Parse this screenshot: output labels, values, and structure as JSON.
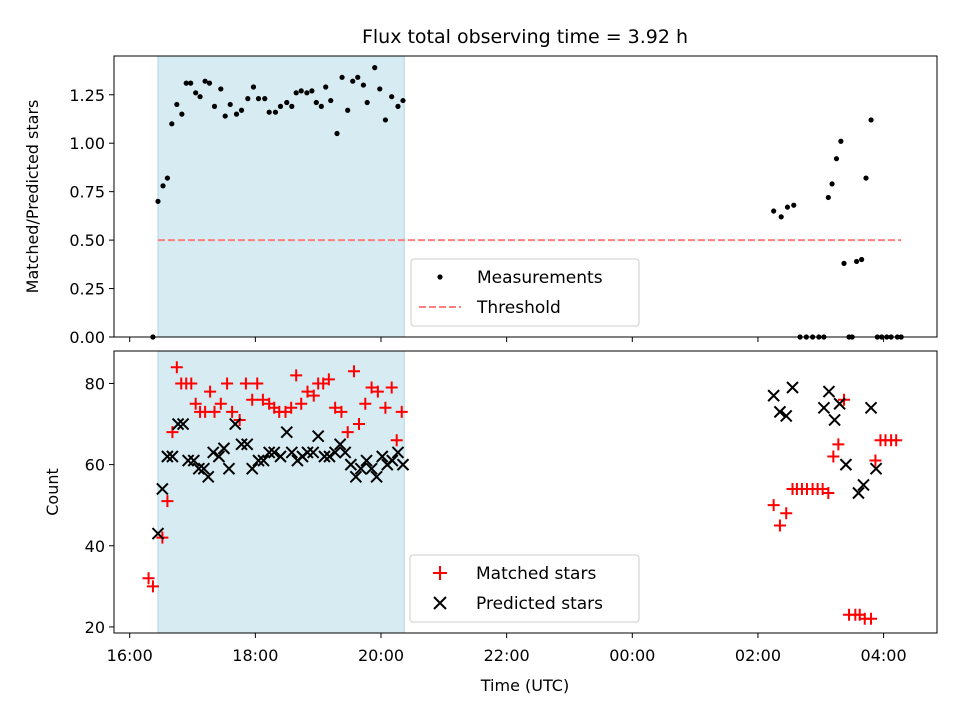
{
  "chart_data": {
    "title": "Flux total observing time = 3.92 h",
    "xlabel": "Time (UTC)",
    "x_unit": "hours since 00:00 of first night (values > 24 are next day)",
    "xlim": [
      15.75,
      28.85
    ],
    "x_ticks": [
      {
        "value": 16,
        "label": "16:00"
      },
      {
        "value": 18,
        "label": "18:00"
      },
      {
        "value": 20,
        "label": "20:00"
      },
      {
        "value": 22,
        "label": "22:00"
      },
      {
        "value": 24,
        "label": "00:00"
      },
      {
        "value": 26,
        "label": "02:00"
      },
      {
        "value": 28,
        "label": "04:00"
      }
    ],
    "shaded_interval": {
      "start": 16.45,
      "end": 20.37,
      "color": "#add8e6"
    },
    "colors": {
      "measurements": "#000000",
      "threshold": "#ff7f7f",
      "matched": "#ff0000",
      "predicted": "#000000",
      "shade": "#add8e6"
    },
    "panels": [
      {
        "type": "scatter",
        "ylabel": "Matched/Predicted stars",
        "ylim": [
          0,
          1.45
        ],
        "y_ticks": [
          {
            "value": 0,
            "label": "0.00"
          },
          {
            "value": 0.25,
            "label": "0.25"
          },
          {
            "value": 0.5,
            "label": "0.50"
          },
          {
            "value": 0.75,
            "label": "0.75"
          },
          {
            "value": 1.0,
            "label": "1.00"
          },
          {
            "value": 1.25,
            "label": "1.25"
          }
        ],
        "legend": {
          "position": "lower center",
          "entries": [
            "Measurements",
            "Threshold"
          ]
        },
        "threshold": {
          "label": "Threshold",
          "value": 0.5,
          "x_range": [
            16.45,
            28.28
          ],
          "style": "dashed"
        },
        "series": [
          {
            "name": "Measurements",
            "marker": "dot",
            "x": [
              16.37,
              16.45,
              16.53,
              16.6,
              16.67,
              16.75,
              16.83,
              16.9,
              16.97,
              17.05,
              17.12,
              17.2,
              17.27,
              17.35,
              17.45,
              17.52,
              17.6,
              17.7,
              17.78,
              17.88,
              17.97,
              18.05,
              18.15,
              18.22,
              18.32,
              18.4,
              18.5,
              18.58,
              18.65,
              18.73,
              18.82,
              18.9,
              18.97,
              19.05,
              19.12,
              19.2,
              19.3,
              19.38,
              19.47,
              19.55,
              19.63,
              19.72,
              19.78,
              19.9,
              19.98,
              20.07,
              20.17,
              20.27,
              20.35,
              26.25,
              26.37,
              26.47,
              26.57,
              26.67,
              26.77,
              26.87,
              26.97,
              27.05,
              27.12,
              27.18,
              27.25,
              27.32,
              27.37,
              27.45,
              27.5,
              27.57,
              27.65,
              27.72,
              27.8,
              27.9,
              27.97,
              28.05,
              28.12,
              28.22,
              28.28
            ],
            "y": [
              0.0,
              0.7,
              0.78,
              0.82,
              1.1,
              1.2,
              1.15,
              1.31,
              1.31,
              1.26,
              1.24,
              1.32,
              1.31,
              1.19,
              1.28,
              1.14,
              1.2,
              1.15,
              1.17,
              1.23,
              1.29,
              1.23,
              1.23,
              1.16,
              1.16,
              1.19,
              1.21,
              1.19,
              1.26,
              1.27,
              1.26,
              1.27,
              1.21,
              1.19,
              1.29,
              1.22,
              1.05,
              1.34,
              1.17,
              1.32,
              1.34,
              1.3,
              1.21,
              1.39,
              1.28,
              1.12,
              1.24,
              1.19,
              1.22,
              0.65,
              0.62,
              0.67,
              0.68,
              0.0,
              0.0,
              0.0,
              0.0,
              0.0,
              0.72,
              0.79,
              0.92,
              1.01,
              0.38,
              0.0,
              0.0,
              0.39,
              0.4,
              0.82,
              1.12,
              0.0,
              0.0,
              0.0,
              0.0,
              0.0,
              0.0
            ]
          }
        ]
      },
      {
        "type": "scatter",
        "ylabel": "Count",
        "ylim": [
          18.5,
          88
        ],
        "y_ticks": [
          {
            "value": 20,
            "label": "20"
          },
          {
            "value": 40,
            "label": "40"
          },
          {
            "value": 60,
            "label": "60"
          },
          {
            "value": 80,
            "label": "80"
          }
        ],
        "legend": {
          "position": "lower center",
          "entries": [
            "Matched stars",
            "Predicted stars"
          ]
        },
        "series": [
          {
            "name": "Matched stars",
            "marker": "plus",
            "x": [
              16.3,
              16.37,
              16.52,
              16.6,
              16.68,
              16.75,
              16.82,
              16.9,
              16.98,
              17.05,
              17.12,
              17.2,
              17.28,
              17.35,
              17.45,
              17.55,
              17.63,
              17.75,
              17.85,
              17.95,
              18.03,
              18.12,
              18.22,
              18.3,
              18.38,
              18.48,
              18.57,
              18.65,
              18.73,
              18.83,
              18.93,
              19.0,
              19.08,
              19.17,
              19.27,
              19.37,
              19.47,
              19.57,
              19.65,
              19.75,
              19.85,
              19.95,
              20.07,
              20.17,
              20.25,
              20.33,
              26.25,
              26.35,
              26.45,
              26.55,
              26.62,
              26.7,
              26.78,
              26.87,
              26.95,
              27.03,
              27.12,
              27.2,
              27.28,
              27.37,
              27.45,
              27.55,
              27.62,
              27.7,
              27.8,
              27.87,
              27.95,
              28.03,
              28.12,
              28.2
            ],
            "y": [
              32,
              30,
              42,
              51,
              68,
              84,
              80,
              80,
              80,
              75,
              73,
              73,
              78,
              73,
              75,
              80,
              73,
              71,
              80,
              76,
              80,
              76,
              75,
              74,
              73,
              73,
              74,
              82,
              75,
              78,
              77,
              80,
              80,
              81,
              74,
              73,
              68,
              83,
              70,
              75,
              79,
              78,
              74,
              79,
              66,
              73,
              50,
              45,
              48,
              54,
              54,
              54,
              54,
              54,
              54,
              54,
              53,
              62,
              65,
              76,
              23,
              23,
              23,
              22,
              22,
              61,
              66,
              66,
              66,
              66
            ]
          },
          {
            "name": "Predicted stars",
            "marker": "x",
            "x": [
              16.45,
              16.52,
              16.6,
              16.68,
              16.77,
              16.85,
              16.93,
              17.02,
              17.1,
              17.18,
              17.25,
              17.33,
              17.42,
              17.5,
              17.58,
              17.68,
              17.78,
              17.87,
              17.95,
              18.05,
              18.13,
              18.22,
              18.3,
              18.4,
              18.5,
              18.58,
              18.67,
              18.75,
              18.83,
              18.92,
              19.0,
              19.1,
              19.18,
              19.27,
              19.35,
              19.43,
              19.52,
              19.6,
              19.68,
              19.77,
              19.85,
              19.93,
              20.02,
              20.1,
              20.18,
              20.27,
              20.35,
              26.25,
              26.35,
              26.45,
              26.55,
              27.05,
              27.13,
              27.22,
              27.3,
              27.4,
              27.6,
              27.68,
              27.8,
              27.88
            ],
            "y": [
              43,
              54,
              62,
              62,
              70,
              70,
              61,
              61,
              59,
              59,
              57,
              63,
              62,
              64,
              59,
              70,
              65,
              65,
              59,
              61,
              61,
              63,
              63,
              62,
              68,
              63,
              61,
              62,
              63,
              63,
              67,
              62,
              62,
              63,
              65,
              63,
              60,
              57,
              59,
              61,
              59,
              57,
              62,
              60,
              61,
              63,
              60,
              77,
              73,
              72,
              79,
              74,
              78,
              71,
              75,
              60,
              53,
              55,
              74,
              59
            ]
          }
        ]
      }
    ]
  }
}
